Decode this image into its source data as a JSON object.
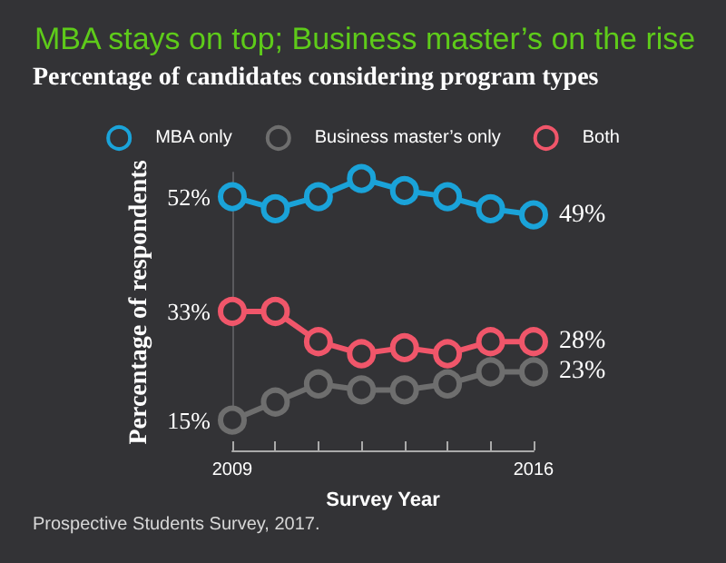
{
  "chart_data": {
    "type": "line",
    "title": "MBA stays on top; Business master’s on the rise",
    "subtitle": "Percentage of candidates considering program types",
    "xlabel": "Survey Year",
    "ylabel": "Percentage of respondents",
    "x": [
      2009,
      2010,
      2011,
      2012,
      2013,
      2014,
      2015,
      2016
    ],
    "series": [
      {
        "name": "MBA only",
        "color": "#1aa3d9",
        "values": [
          52,
          50,
          52,
          55,
          53,
          52,
          50,
          49
        ],
        "value_labels": [
          null,
          null,
          null,
          null,
          null,
          null,
          null,
          "49%"
        ]
      },
      {
        "name": "Business master’s only",
        "color": "#6e6e6e",
        "values": [
          15,
          18,
          21,
          20,
          20,
          21,
          23,
          23
        ],
        "value_labels": [
          null,
          null,
          null,
          null,
          null,
          null,
          null,
          "23%"
        ]
      },
      {
        "name": "Both",
        "color": "#f0566a",
        "values": [
          33,
          33,
          28,
          26,
          27,
          26,
          28,
          28
        ],
        "value_labels": [
          null,
          null,
          null,
          null,
          null,
          null,
          null,
          "28%"
        ]
      }
    ],
    "xlim": [
      2009,
      2016
    ],
    "xticks": [
      2009,
      {
        "value": 2010,
        "label": null
      },
      {
        "value": 2011,
        "label": null
      },
      {
        "value": 2012,
        "label": null
      },
      {
        "value": 2013,
        "label": null
      },
      {
        "value": 2014,
        "label": null
      },
      {
        "value": 2015,
        "label": null
      },
      2016
    ],
    "ylim": [
      13,
      56
    ],
    "yticks": [
      {
        "value": 15,
        "label": "15%"
      },
      {
        "value": 33,
        "label": "33%"
      },
      {
        "value": 52,
        "label": "52%"
      }
    ],
    "legend": "top",
    "marker": "circle",
    "line_style": "solid",
    "grid": false,
    "annotations": [
      "Prospective Students Survey, 2017."
    ]
  }
}
